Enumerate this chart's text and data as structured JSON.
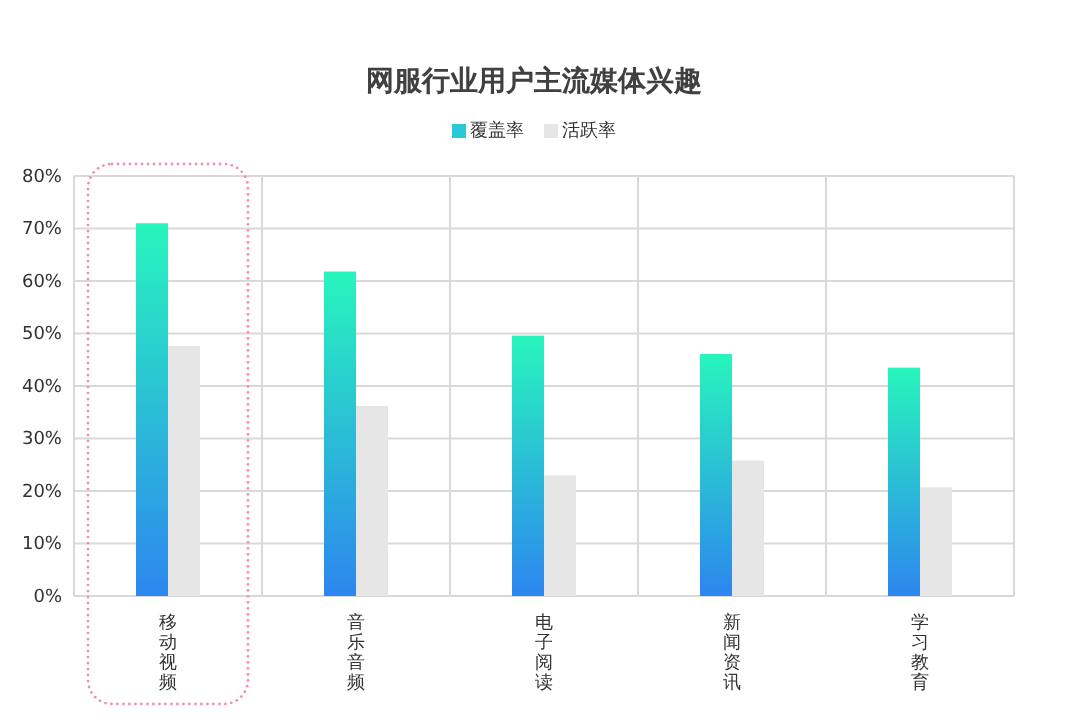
{
  "chart_data": {
    "type": "bar",
    "title": "网服行业用户主流媒体兴趣",
    "categories": [
      "移动视频",
      "音乐音频",
      "电子阅读",
      "新闻资讯",
      "学习教育"
    ],
    "series": [
      {
        "name": "覆盖率",
        "color": "#2bc8d8",
        "values": [
          71.0,
          61.8,
          49.6,
          46.1,
          43.5
        ]
      },
      {
        "name": "活跃率",
        "color": "#e6e6e6",
        "values": [
          47.6,
          36.2,
          23.0,
          25.8,
          20.7
        ]
      }
    ],
    "ylim": [
      0,
      80
    ],
    "yticks": [
      {
        "value": 0,
        "label": "0%"
      },
      {
        "value": 10,
        "label": "10%"
      },
      {
        "value": 20,
        "label": "20%"
      },
      {
        "value": 30,
        "label": "30%"
      },
      {
        "value": 40,
        "label": "40%"
      },
      {
        "value": 50,
        "label": "50%"
      },
      {
        "value": 60,
        "label": "60%"
      },
      {
        "value": 70,
        "label": "70%"
      },
      {
        "value": 80,
        "label": "80%"
      }
    ],
    "grid": true,
    "legend": "top"
  }
}
